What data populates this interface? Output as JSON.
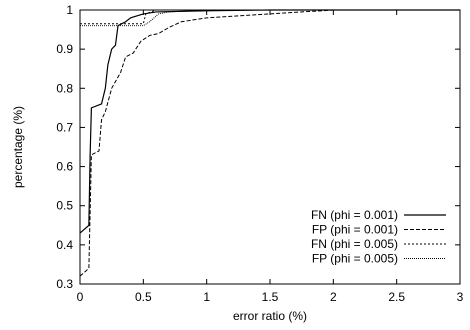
{
  "chart_data": {
    "type": "line",
    "xlabel": "error ratio (%)",
    "ylabel": "percentage (%)",
    "xlim": [
      0,
      3
    ],
    "ylim": [
      0.3,
      1
    ],
    "xticks": [
      0,
      0.5,
      1,
      1.5,
      2,
      2.5,
      3
    ],
    "xtick_labels": [
      "0",
      "0.5",
      "1",
      "1.5",
      "2",
      "2.5",
      "3"
    ],
    "yticks": [
      0.3,
      0.4,
      0.5,
      0.6,
      0.7,
      0.8,
      0.9,
      1
    ],
    "ytick_labels": [
      "0.3",
      "0.4",
      "0.5",
      "0.6",
      "0.7",
      "0.8",
      "0.9",
      "1"
    ],
    "grid": false,
    "legend_position": "bottom-right",
    "series": [
      {
        "name": "FN (phi = 0.001)",
        "line_style": "solid",
        "points": [
          [
            0,
            0.43
          ],
          [
            0.07,
            0.45
          ],
          [
            0.08,
            0.63
          ],
          [
            0.09,
            0.75
          ],
          [
            0.17,
            0.76
          ],
          [
            0.2,
            0.8
          ],
          [
            0.22,
            0.86
          ],
          [
            0.25,
            0.9
          ],
          [
            0.28,
            0.91
          ],
          [
            0.3,
            0.96
          ],
          [
            0.36,
            0.97
          ],
          [
            0.4,
            0.98
          ],
          [
            0.5,
            0.99
          ],
          [
            0.6,
            0.995
          ],
          [
            1,
            0.998
          ],
          [
            1.5,
            1
          ],
          [
            3,
            1
          ]
        ]
      },
      {
        "name": "FP (phi = 0.001)",
        "line_style": "dashed",
        "points": [
          [
            0,
            0.32
          ],
          [
            0.07,
            0.34
          ],
          [
            0.09,
            0.63
          ],
          [
            0.15,
            0.64
          ],
          [
            0.17,
            0.72
          ],
          [
            0.2,
            0.74
          ],
          [
            0.25,
            0.8
          ],
          [
            0.32,
            0.84
          ],
          [
            0.36,
            0.88
          ],
          [
            0.42,
            0.89
          ],
          [
            0.48,
            0.92
          ],
          [
            0.55,
            0.935
          ],
          [
            0.62,
            0.94
          ],
          [
            0.7,
            0.955
          ],
          [
            0.8,
            0.97
          ],
          [
            0.9,
            0.975
          ],
          [
            1,
            0.98
          ],
          [
            1.25,
            0.985
          ],
          [
            1.5,
            0.99
          ],
          [
            2,
            1
          ],
          [
            3,
            1
          ]
        ]
      },
      {
        "name": "FN (phi = 0.005)",
        "line_style": "dotted",
        "points": [
          [
            0,
            0.965
          ],
          [
            0.5,
            0.965
          ],
          [
            0.52,
            0.99
          ],
          [
            0.6,
            1
          ],
          [
            3,
            1
          ]
        ]
      },
      {
        "name": "FP (phi = 0.005)",
        "line_style": "dense-dotted",
        "points": [
          [
            0,
            0.96
          ],
          [
            0.5,
            0.96
          ],
          [
            0.55,
            0.97
          ],
          [
            0.62,
            0.99
          ],
          [
            0.7,
            0.995
          ],
          [
            1,
            1
          ],
          [
            3,
            1
          ]
        ]
      }
    ]
  }
}
